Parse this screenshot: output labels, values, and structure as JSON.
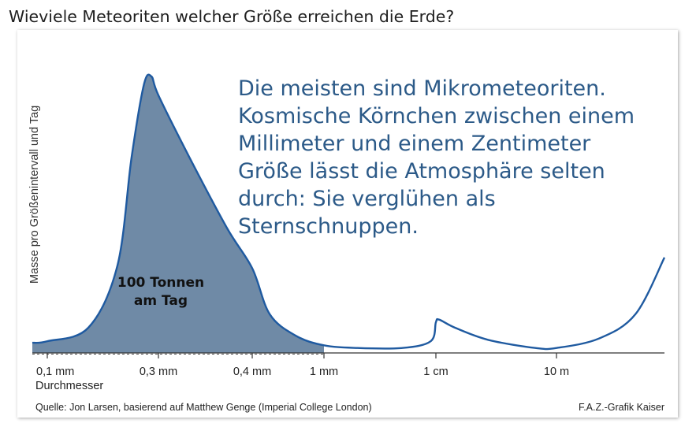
{
  "title": "Wieviele Meteoriten welcher Größe erreichen die Erde?",
  "colors": {
    "line": "#1f5aa0",
    "fill": "#6f8aa6",
    "annotation": "#2c5a88"
  },
  "annotation_lines": [
    "Die meisten sind Mikrometeoriten.",
    "Kosmische Körnchen zwischen einem",
    "Millimeter und einem Zentimeter",
    "Größe lässt die Atmosphäre selten",
    "durch: Sie verglühen als",
    "Sternschnuppen."
  ],
  "area_label": [
    "100 Tonnen",
    "am Tag"
  ],
  "source": "Quelle: Jon Larsen, basierend auf Matthew Genge (Imperial College London)",
  "credit": "F.A.Z.-Grafik Kaiser",
  "chart_data": {
    "type": "area",
    "title": "Wieviele Meteoriten welcher Größe erreichen die Erde?",
    "ylabel": "Masse pro Größenintervall und Tag",
    "xlabel": "Durchmesser",
    "x_ticks": [
      {
        "label": "0,1 mm",
        "position": 0.1
      },
      {
        "label": "0,3 mm",
        "position": 0.3
      },
      {
        "label": "0,4 mm",
        "position": 0.4
      },
      {
        "label": "1 mm",
        "position": 1
      },
      {
        "label": "1 cm",
        "position": 10
      },
      {
        "label": "10 m",
        "position": 10000
      }
    ],
    "series": [
      {
        "points": [
          [
            0.1,
            0.02
          ],
          [
            0.15,
            0.07
          ],
          [
            0.2,
            0.3
          ],
          [
            0.23,
            0.7
          ],
          [
            0.26,
            0.97
          ],
          [
            0.28,
            1.0
          ],
          [
            0.3,
            0.93
          ],
          [
            0.33,
            0.7
          ],
          [
            0.37,
            0.44
          ],
          [
            0.4,
            0.29
          ],
          [
            0.5,
            0.12
          ],
          [
            0.7,
            0.04
          ],
          [
            1,
            0.005
          ],
          [
            2,
            -0.005
          ],
          [
            5,
            -0.005
          ],
          [
            9,
            0.02
          ],
          [
            10,
            0.09
          ],
          [
            12,
            0.1
          ],
          [
            30,
            0.07
          ],
          [
            200,
            0.025
          ],
          [
            3000,
            -0.005
          ],
          [
            10000,
            -0.005
          ],
          [
            50000,
            0.03
          ],
          [
            200000,
            0.12
          ],
          [
            600000,
            0.33
          ]
        ]
      }
    ],
    "shaded_range": [
      0.1,
      1
    ],
    "shaded_label": "100 Tonnen am Tag",
    "grid": false,
    "legend": "none"
  }
}
